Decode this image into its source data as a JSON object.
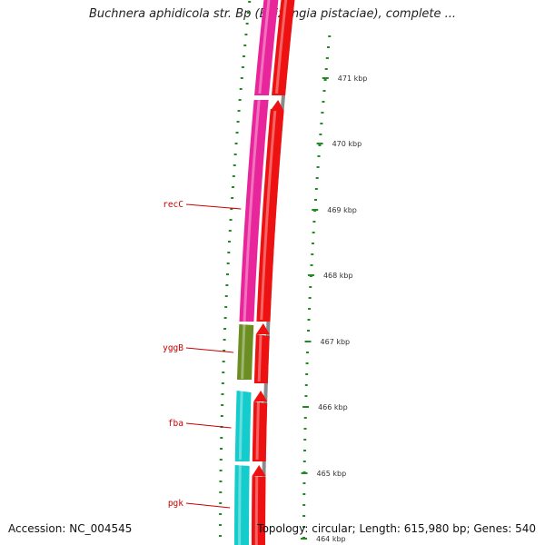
{
  "title": "Buchnera aphidicola str. Bp (Baizongia pistaciae), complete ...",
  "accession": "Accession: NC_004545",
  "summary": "Topology: circular; Length: 615,980 bp; Genes: 540",
  "colors": {
    "magenta": "#e8259b",
    "red": "#ee1111",
    "olive": "#6b8e23",
    "cyan": "#14cccc",
    "backbone": "#8c8c8c",
    "tick": "#228b22",
    "label": "#cc0000"
  },
  "ruler": [
    {
      "label": "471 kbp"
    },
    {
      "label": "470 kbp"
    },
    {
      "label": "469 kbp"
    },
    {
      "label": "468 kbp"
    },
    {
      "label": "467 kbp"
    },
    {
      "label": "466 kbp"
    },
    {
      "label": "465 kbp"
    },
    {
      "label": "464 kbp"
    }
  ],
  "gene_labels": [
    {
      "name": "recC"
    },
    {
      "name": "yggB"
    },
    {
      "name": "fba"
    },
    {
      "name": "pgk"
    }
  ]
}
